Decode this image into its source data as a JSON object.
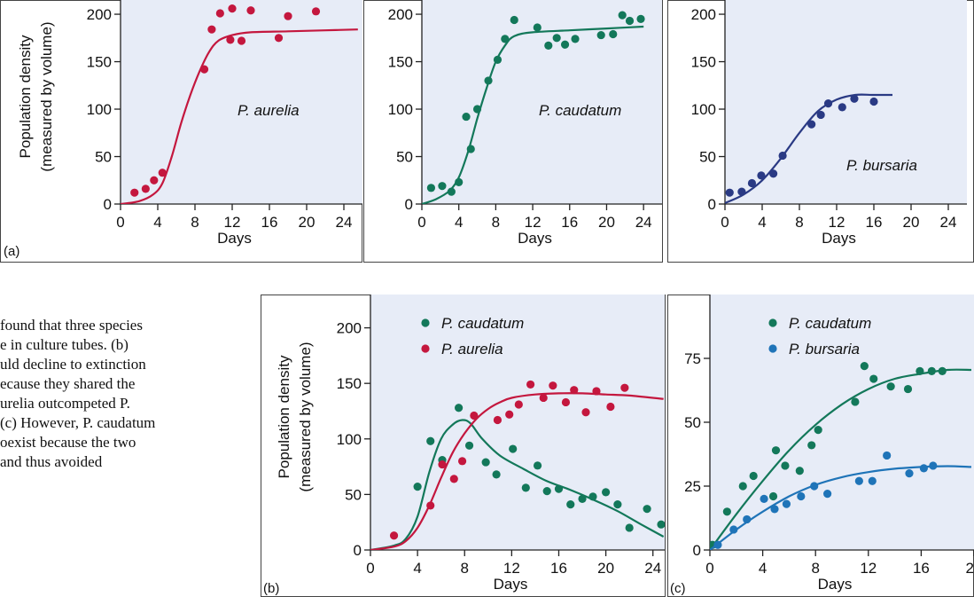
{
  "caption_lines": [
    "found that three species",
    "e in culture tubes. (b)",
    "uld decline to extinction",
    "ecause they shared the",
    "urelia outcompeted P.",
    "(c) However, P. caudatum",
    "oexist because the two",
    "and thus avoided"
  ],
  "colors": {
    "panel_bg": "#e7ecf7",
    "aurelia": "#c4173e",
    "caudatum": "#13785a",
    "bursaria_a": "#2a3a84",
    "bursaria_c": "#1f74b8"
  },
  "chart_data": [
    {
      "panel": "(a)",
      "type": "scatter",
      "ylabel": [
        "Population density",
        "(measured by volume)"
      ],
      "xlabel": "Days",
      "xlim": [
        0,
        26
      ],
      "ylim": [
        0,
        215
      ],
      "xticks": [
        0,
        4,
        8,
        12,
        16,
        20,
        24
      ],
      "yticks": [
        0,
        50,
        100,
        150,
        200
      ],
      "label": "P. aurelia",
      "series": [
        {
          "name": "P. aurelia",
          "color": "#c4173e",
          "points": [
            [
              1.5,
              12
            ],
            [
              2.7,
              16
            ],
            [
              3.6,
              25
            ],
            [
              4.5,
              33
            ],
            [
              9,
              142
            ],
            [
              9.8,
              184
            ],
            [
              10.7,
              201
            ],
            [
              11.8,
              173
            ],
            [
              12,
              206
            ],
            [
              13,
              172
            ],
            [
              14,
              204
            ],
            [
              17,
              175
            ],
            [
              18,
              198
            ],
            [
              21,
              203
            ]
          ],
          "curve": [
            [
              0,
              0
            ],
            [
              2,
              3
            ],
            [
              3.5,
              10
            ],
            [
              4.5,
              22
            ],
            [
              5.5,
              50
            ],
            [
              6.5,
              85
            ],
            [
              7.5,
              115
            ],
            [
              8.5,
              140
            ],
            [
              9.5,
              160
            ],
            [
              10.5,
              172
            ],
            [
              12,
              178
            ],
            [
              14,
              181
            ],
            [
              18,
              182
            ],
            [
              22,
              183
            ],
            [
              25.5,
              184
            ]
          ]
        }
      ]
    },
    {
      "panel": "",
      "type": "scatter",
      "xlabel": "Days",
      "xlim": [
        0,
        26
      ],
      "ylim": [
        0,
        215
      ],
      "xticks": [
        0,
        4,
        8,
        12,
        16,
        20,
        24
      ],
      "yticks": [
        0,
        50,
        100,
        150,
        200
      ],
      "label": "P. caudatum",
      "series": [
        {
          "name": "P. caudatum",
          "color": "#13785a",
          "points": [
            [
              1,
              17
            ],
            [
              2.2,
              19
            ],
            [
              3.2,
              13
            ],
            [
              4,
              23
            ],
            [
              4.8,
              92
            ],
            [
              5.3,
              58
            ],
            [
              6,
              100
            ],
            [
              7.2,
              130
            ],
            [
              8.2,
              152
            ],
            [
              9,
              174
            ],
            [
              10,
              194
            ],
            [
              12.5,
              186
            ],
            [
              13.7,
              167
            ],
            [
              14.6,
              175
            ],
            [
              15.5,
              168
            ],
            [
              16.6,
              174
            ],
            [
              19.4,
              178
            ],
            [
              20.7,
              179
            ],
            [
              21.7,
              199
            ],
            [
              22.5,
              193
            ],
            [
              23.7,
              195
            ]
          ],
          "curve": [
            [
              0,
              0
            ],
            [
              1.5,
              5
            ],
            [
              3,
              14
            ],
            [
              4,
              28
            ],
            [
              5,
              55
            ],
            [
              6,
              90
            ],
            [
              7,
              122
            ],
            [
              8,
              150
            ],
            [
              9,
              167
            ],
            [
              10,
              177
            ],
            [
              12,
              181
            ],
            [
              16,
              183
            ],
            [
              20,
              185
            ],
            [
              24,
              187
            ]
          ]
        }
      ]
    },
    {
      "panel": "",
      "type": "scatter",
      "xlabel": "Days",
      "xlim": [
        0,
        26
      ],
      "ylim": [
        0,
        215
      ],
      "xticks": [
        0,
        4,
        8,
        12,
        16,
        20,
        24
      ],
      "yticks": [
        0,
        50,
        100,
        150,
        200
      ],
      "label": "P. bursaria",
      "series": [
        {
          "name": "P. bursaria",
          "color": "#2a3a84",
          "points": [
            [
              0.5,
              12
            ],
            [
              1.8,
              13
            ],
            [
              2.9,
              22
            ],
            [
              3.9,
              30
            ],
            [
              5.2,
              32
            ],
            [
              6.2,
              51
            ],
            [
              9.3,
              84
            ],
            [
              10.3,
              94
            ],
            [
              11.1,
              106
            ],
            [
              12.6,
              102
            ],
            [
              13.9,
              111
            ],
            [
              16,
              108
            ]
          ],
          "curve": [
            [
              0,
              1
            ],
            [
              2,
              10
            ],
            [
              4,
              25
            ],
            [
              6,
              48
            ],
            [
              8,
              75
            ],
            [
              10,
              98
            ],
            [
              12,
              110
            ],
            [
              14,
              115
            ],
            [
              16,
              115
            ],
            [
              18,
              115
            ]
          ]
        }
      ]
    },
    {
      "panel": "(b)",
      "type": "scatter",
      "ylabel": [
        "Population density",
        "(measured by volume)"
      ],
      "xlabel": "Days",
      "xlim": [
        0,
        25
      ],
      "ylim": [
        0,
        230
      ],
      "xticks": [
        0,
        4,
        8,
        12,
        16,
        20,
        24
      ],
      "yticks": [
        0,
        50,
        100,
        150,
        200
      ],
      "legend": [
        "P. caudatum",
        "P. aurelia"
      ],
      "series": [
        {
          "name": "P. caudatum",
          "color": "#13785a",
          "points": [
            [
              4,
              57
            ],
            [
              5.1,
              98
            ],
            [
              6.1,
              81
            ],
            [
              7.5,
              128
            ],
            [
              8.4,
              94
            ],
            [
              9.8,
              79
            ],
            [
              10.7,
              68
            ],
            [
              12.1,
              91
            ],
            [
              13.2,
              56
            ],
            [
              14.2,
              76
            ],
            [
              15,
              53
            ],
            [
              16,
              55
            ],
            [
              17,
              41
            ],
            [
              18,
              46
            ],
            [
              18.9,
              48
            ],
            [
              20,
              52
            ],
            [
              21,
              41
            ],
            [
              22,
              20
            ],
            [
              23.5,
              37
            ],
            [
              24.7,
              23
            ]
          ],
          "curve": [
            [
              0,
              0
            ],
            [
              2,
              4
            ],
            [
              3,
              10
            ],
            [
              4,
              30
            ],
            [
              5,
              70
            ],
            [
              6,
              100
            ],
            [
              7,
              113
            ],
            [
              7.8,
              117
            ],
            [
              8.5,
              114
            ],
            [
              9.5,
              100
            ],
            [
              11,
              85
            ],
            [
              13,
              73
            ],
            [
              15,
              62
            ],
            [
              17,
              54
            ],
            [
              19,
              45
            ],
            [
              21,
              35
            ],
            [
              23,
              23
            ],
            [
              24.9,
              12
            ]
          ]
        },
        {
          "name": "P. aurelia",
          "color": "#c4173e",
          "points": [
            [
              2,
              13
            ],
            [
              5.1,
              40
            ],
            [
              6.1,
              77
            ],
            [
              7.1,
              64
            ],
            [
              7.8,
              80
            ],
            [
              8.8,
              121
            ],
            [
              10.8,
              117
            ],
            [
              11.8,
              122
            ],
            [
              12.6,
              131
            ],
            [
              13.6,
              149
            ],
            [
              14.7,
              137
            ],
            [
              15.5,
              148
            ],
            [
              16.6,
              133
            ],
            [
              17.3,
              144
            ],
            [
              18.3,
              124
            ],
            [
              19.2,
              143
            ],
            [
              20.4,
              129
            ],
            [
              21.6,
              146
            ]
          ],
          "curve": [
            [
              0,
              0
            ],
            [
              2,
              3
            ],
            [
              3,
              8
            ],
            [
              4,
              20
            ],
            [
              5,
              40
            ],
            [
              6,
              65
            ],
            [
              7,
              88
            ],
            [
              8,
              105
            ],
            [
              9,
              118
            ],
            [
              10,
              127
            ],
            [
              11,
              133
            ],
            [
              12,
              137
            ],
            [
              14,
              140
            ],
            [
              16,
              141
            ],
            [
              18,
              141
            ],
            [
              20,
              140
            ],
            [
              22,
              139
            ],
            [
              24.9,
              136
            ]
          ]
        }
      ]
    },
    {
      "panel": "(c)",
      "type": "scatter",
      "xlabel": "Days",
      "xlim": [
        0,
        20
      ],
      "ylim": [
        0,
        100
      ],
      "xticks": [
        0,
        4,
        8,
        12,
        16,
        20
      ],
      "yticks": [
        0,
        25,
        50,
        75
      ],
      "legend": [
        "P. caudatum",
        "P. bursaria"
      ],
      "series": [
        {
          "name": "P. caudatum",
          "color": "#13785a",
          "points": [
            [
              0.2,
              2
            ],
            [
              1.3,
              15
            ],
            [
              2.5,
              25
            ],
            [
              3.3,
              29
            ],
            [
              4.8,
              21
            ],
            [
              5,
              39
            ],
            [
              5.7,
              33
            ],
            [
              6.8,
              31
            ],
            [
              7.7,
              41
            ],
            [
              8.2,
              47
            ],
            [
              11,
              58
            ],
            [
              11.7,
              72
            ],
            [
              12.4,
              67
            ],
            [
              13.7,
              64
            ],
            [
              15,
              63
            ],
            [
              15.9,
              70
            ],
            [
              16.8,
              70
            ],
            [
              17.6,
              70
            ]
          ],
          "curve": [
            [
              0,
              0
            ],
            [
              2,
              14
            ],
            [
              4,
              27
            ],
            [
              6,
              39
            ],
            [
              8,
              49
            ],
            [
              10,
              57
            ],
            [
              12,
              63
            ],
            [
              14,
              67
            ],
            [
              16,
              69
            ],
            [
              18,
              70.5
            ],
            [
              19.8,
              70.5
            ]
          ]
        },
        {
          "name": "P. bursaria",
          "color": "#1f74b8",
          "points": [
            [
              0.6,
              2
            ],
            [
              1.8,
              8
            ],
            [
              2.8,
              12
            ],
            [
              4.1,
              20
            ],
            [
              4.9,
              16
            ],
            [
              5.8,
              18
            ],
            [
              6.9,
              21
            ],
            [
              7.9,
              25
            ],
            [
              8.9,
              22
            ],
            [
              11.3,
              27
            ],
            [
              12.3,
              27
            ],
            [
              13.4,
              37
            ],
            [
              15.1,
              30
            ],
            [
              16.2,
              32
            ],
            [
              16.9,
              33
            ]
          ],
          "curve": [
            [
              0,
              0
            ],
            [
              2,
              8
            ],
            [
              4,
              15
            ],
            [
              6,
              21
            ],
            [
              8,
              25.5
            ],
            [
              10,
              28.5
            ],
            [
              12,
              30.5
            ],
            [
              14,
              31.8
            ],
            [
              16,
              32.5
            ],
            [
              18,
              32.8
            ],
            [
              19.8,
              32.5
            ]
          ]
        }
      ]
    }
  ]
}
